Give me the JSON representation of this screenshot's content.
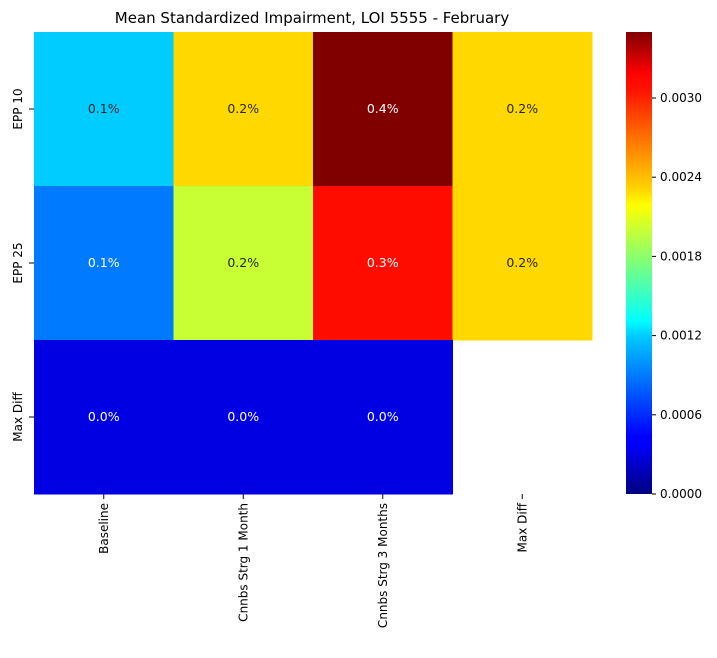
{
  "chart_data": {
    "type": "heatmap",
    "title": "Mean Standardized Impairment, LOI 5555 - February",
    "xlabel": "",
    "ylabel": "",
    "x_categories": [
      "Baseline",
      "Cnnbs Strg 1 Month",
      "Cnnbs Strg 3 Months",
      "Max Diff"
    ],
    "y_categories": [
      "EPP 10",
      "EPP 25",
      "Max Diff"
    ],
    "values": [
      [
        0.0012,
        0.0023,
        0.0035,
        0.0023
      ],
      [
        0.0009,
        0.002,
        0.0031,
        0.0023
      ],
      [
        0.0003,
        0.0003,
        0.0003,
        null
      ]
    ],
    "annotations": [
      [
        "0.1%",
        "0.2%",
        "0.4%",
        "0.2%"
      ],
      [
        "0.1%",
        "0.2%",
        "0.3%",
        "0.2%"
      ],
      [
        "0.0%",
        "0.0%",
        "0.0%",
        ""
      ]
    ],
    "colormap": "jet",
    "colorbar": {
      "vmin": 0.0,
      "vmax": 0.0035,
      "ticks": [
        0.0,
        0.0006,
        0.0012,
        0.0018,
        0.0024,
        0.003
      ],
      "tick_labels": [
        "0.0000",
        "0.0006",
        "0.0012",
        "0.0018",
        "0.0024",
        "0.0030"
      ]
    },
    "grid": false,
    "legend": "colorbar-right"
  }
}
